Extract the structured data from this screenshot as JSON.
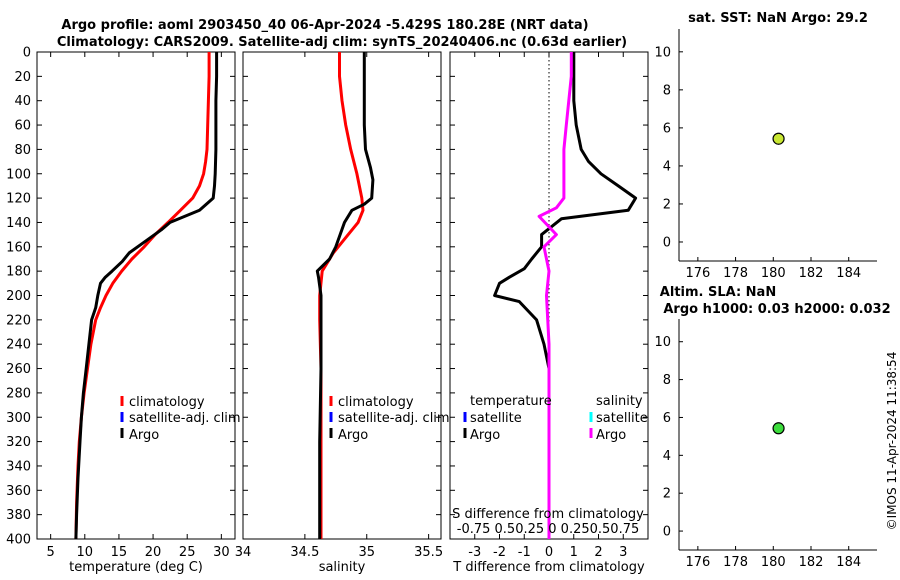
{
  "title": {
    "line1": "Argo profile: aoml 2903450_40 06-Apr-2024 -5.429S 180.28E (NRT data)",
    "line2": "Climatology: CARS2009. Satellite-adj clim: synTS_20240406.nc (0.63d earlier)"
  },
  "side": {
    "sst_title": "sat. SST: NaN Argo: 29.2",
    "sla_title1": "Altim. SLA: NaN",
    "sla_title2": "Argo h1000: 0.03 h2000: 0.032",
    "timestamp": "©IMOS 11-Apr-2024 11:38:54"
  },
  "legend": {
    "climatology": "climatology",
    "satellite_adj": "satellite-adj. clim",
    "argo": "Argo",
    "temperature": "temperature",
    "salinity": "salinity",
    "satellite": "satellite"
  },
  "colors": {
    "climatology": "#ff0000",
    "satellite_adj": "#0000ff",
    "argo": "#000000",
    "salinity_diff": "#ff00ff",
    "sat_salinity": "#00ffff",
    "marker_sst": "#c8e632",
    "marker_sla": "#3cdc3c"
  },
  "chart_data": [
    {
      "id": "temp",
      "type": "line",
      "xlabel": "temperature (deg C)",
      "ylabel": "",
      "xlim": [
        3,
        32
      ],
      "ylim": [
        400,
        0
      ],
      "xticks": [
        5,
        10,
        15,
        20,
        25,
        30
      ],
      "yticks": [
        0,
        20,
        40,
        60,
        80,
        100,
        120,
        140,
        160,
        180,
        200,
        220,
        240,
        260,
        280,
        300,
        320,
        340,
        360,
        380,
        400
      ],
      "series": [
        {
          "name": "climatology",
          "color": "#ff0000",
          "x": [
            28.2,
            28.2,
            28.1,
            28.0,
            27.9,
            27.7,
            27.4,
            26.8,
            25.8,
            24.0,
            22.2,
            20.3,
            18.7,
            16.9,
            15.4,
            14.1,
            13.1,
            12.3,
            11.6,
            10.9,
            10.4,
            9.9,
            9.5,
            9.2,
            9.0,
            8.8,
            8.7
          ],
          "y": [
            0,
            20,
            40,
            60,
            80,
            90,
            100,
            110,
            120,
            130,
            140,
            150,
            160,
            170,
            180,
            190,
            200,
            210,
            220,
            240,
            260,
            280,
            300,
            320,
            340,
            370,
            400
          ]
        },
        {
          "name": "Argo",
          "color": "#000000",
          "x": [
            29.3,
            29.3,
            29.2,
            29.2,
            29.2,
            29.1,
            29.0,
            28.8,
            26.8,
            22.5,
            21.2,
            19.0,
            16.5,
            15.5,
            14.0,
            13.0,
            12.3,
            11.9,
            11.6,
            11.0,
            10.6,
            10.2,
            9.8,
            9.5,
            9.3,
            9.0,
            8.8,
            8.7
          ],
          "y": [
            0,
            20,
            40,
            60,
            80,
            100,
            110,
            120,
            130,
            140,
            146,
            155,
            165,
            172,
            180,
            185,
            190,
            200,
            210,
            220,
            240,
            260,
            280,
            300,
            320,
            350,
            380,
            400
          ]
        }
      ]
    },
    {
      "id": "salt",
      "type": "line",
      "xlabel": "salinity",
      "ylabel": "",
      "xlim": [
        34,
        35.6
      ],
      "ylim": [
        400,
        0
      ],
      "xticks": [
        34,
        34.5,
        35,
        35.5
      ],
      "series": [
        {
          "name": "climatology",
          "color": "#ff0000",
          "x": [
            34.78,
            34.78,
            34.8,
            34.83,
            34.87,
            34.92,
            34.96,
            34.97,
            34.93,
            34.85,
            34.73,
            34.64,
            34.62,
            34.62,
            34.63,
            34.63,
            34.63
          ],
          "y": [
            0,
            20,
            40,
            60,
            80,
            100,
            120,
            130,
            140,
            150,
            165,
            180,
            200,
            220,
            260,
            320,
            400
          ]
        },
        {
          "name": "Argo",
          "color": "#000000",
          "x": [
            34.98,
            34.98,
            34.98,
            34.98,
            34.99,
            35.03,
            35.05,
            35.04,
            34.98,
            34.88,
            34.82,
            34.75,
            34.7,
            34.6,
            34.61,
            34.63,
            34.63,
            34.63,
            34.62,
            34.62
          ],
          "y": [
            0,
            20,
            40,
            60,
            80,
            95,
            105,
            120,
            125,
            130,
            140,
            160,
            170,
            180,
            185,
            200,
            220,
            260,
            320,
            400
          ]
        }
      ]
    },
    {
      "id": "diff",
      "type": "line",
      "xlabel": "T difference from climatology",
      "ylabel": "",
      "xlim": [
        -4,
        4
      ],
      "ylim": [
        400,
        0
      ],
      "xticks": [
        -3,
        -2,
        -1,
        0,
        1,
        2,
        3
      ],
      "top_label": "S difference from climatology",
      "top_ticks": "-0.75 0.50.25  0  0.250.50.75",
      "series": [
        {
          "name": "temperature Argo",
          "color": "#000000",
          "x": [
            1.0,
            1.0,
            1.0,
            1.1,
            1.3,
            1.6,
            2.1,
            2.8,
            3.5,
            3.2,
            0.5,
            -0.3,
            -0.3,
            -0.7,
            -1.0,
            -1.6,
            -2.0,
            -2.2,
            -1.2,
            -0.5,
            -0.2,
            0.0,
            0.0,
            0.0,
            0.0,
            0.0
          ],
          "y": [
            0,
            20,
            40,
            60,
            80,
            90,
            100,
            110,
            120,
            130,
            137,
            150,
            160,
            170,
            178,
            185,
            190,
            200,
            205,
            220,
            240,
            260,
            300,
            340,
            380,
            400
          ]
        },
        {
          "name": "salinity Argo",
          "color": "#ff00ff",
          "x": [
            0.9,
            0.9,
            0.8,
            0.7,
            0.6,
            0.6,
            0.6,
            0.3,
            -0.4,
            0.3,
            -0.2,
            0.0,
            -0.1,
            0.0,
            0.0,
            0.0,
            0.0
          ],
          "y": [
            0,
            20,
            40,
            60,
            80,
            100,
            120,
            128,
            135,
            150,
            160,
            180,
            200,
            240,
            300,
            360,
            400
          ]
        }
      ]
    },
    {
      "id": "sst",
      "type": "scatter",
      "xlim": [
        175,
        185.5
      ],
      "ylim": [
        -1,
        11.2
      ],
      "xticks": [
        176,
        178,
        180,
        182,
        184
      ],
      "yticks": [
        0,
        2,
        4,
        6,
        8,
        10
      ],
      "points": [
        {
          "x": 180.28,
          "y": 5.43
        }
      ]
    },
    {
      "id": "sla",
      "type": "scatter",
      "xlim": [
        175,
        185.5
      ],
      "ylim": [
        -1,
        11.2
      ],
      "xticks": [
        176,
        178,
        180,
        182,
        184
      ],
      "yticks": [
        0,
        2,
        4,
        6,
        8,
        10
      ],
      "points": [
        {
          "x": 180.28,
          "y": 5.43
        }
      ]
    }
  ]
}
